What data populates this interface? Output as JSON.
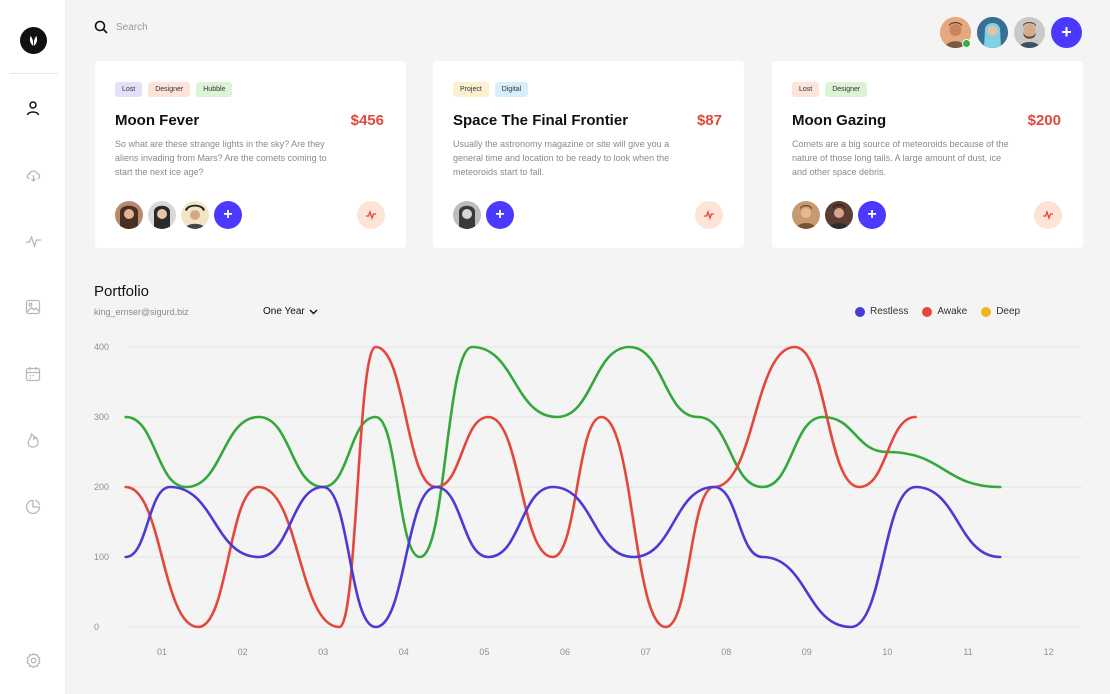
{
  "search": {
    "placeholder": "Search"
  },
  "sidebar": {
    "items": [
      {
        "name": "user",
        "icon": "user-icon"
      },
      {
        "name": "cloud",
        "icon": "cloud-download-icon"
      },
      {
        "name": "activity",
        "icon": "activity-icon"
      },
      {
        "name": "image",
        "icon": "image-icon"
      },
      {
        "name": "calendar",
        "icon": "calendar-icon"
      },
      {
        "name": "fire",
        "icon": "fire-icon"
      },
      {
        "name": "chart",
        "icon": "pie-chart-icon"
      },
      {
        "name": "settings",
        "icon": "gear-icon"
      }
    ]
  },
  "header": {
    "add_label": "+"
  },
  "cards": [
    {
      "tags": [
        {
          "label": "Lost",
          "color": "#e3e0fb"
        },
        {
          "label": "Designer",
          "color": "#fde3d9"
        },
        {
          "label": "Hubble",
          "color": "#ddf3d6"
        }
      ],
      "title": "Moon Fever",
      "price": "$456",
      "description": "So what are these strange lights in the sky? Are they aliens invading from Mars? Are the comets coming to start the next ice age?",
      "add_label": "+"
    },
    {
      "tags": [
        {
          "label": "Project",
          "color": "#fdf0cf"
        },
        {
          "label": "Digital",
          "color": "#d6f0fb"
        }
      ],
      "title": "Space The Final Frontier",
      "price": "$87",
      "description": "Usually the astronomy magazine or site will give you a general time and location to be ready to look when the meteoroids start to fall.",
      "add_label": "+"
    },
    {
      "tags": [
        {
          "label": "Lost",
          "color": "#fde3d9"
        },
        {
          "label": "Designer",
          "color": "#ddf3d6"
        }
      ],
      "title": "Moon Gazing",
      "price": "$200",
      "description": "Comets are a big source of meteoroids because of the nature of those long tails. A large amount of dust, ice and other space debris.",
      "add_label": "+"
    }
  ],
  "portfolio": {
    "title": "Portfolio",
    "email": "king_ernser@sigurd.biz",
    "period": "One Year"
  },
  "chart_data": {
    "type": "line",
    "x": [
      "01",
      "02",
      "03",
      "04",
      "05",
      "06",
      "07",
      "08",
      "09",
      "10",
      "11",
      "12"
    ],
    "ylim": [
      0,
      400
    ],
    "yticks": [
      "0",
      "100",
      "200",
      "300",
      "400"
    ],
    "grid": true,
    "legend_position": "top-right",
    "series": [
      {
        "name": "Restless",
        "color": "#4a3ad6",
        "points": [
          [
            0.55,
            100
          ],
          [
            1.1,
            200
          ],
          [
            2.2,
            100
          ],
          [
            3.0,
            200
          ],
          [
            3.65,
            0
          ],
          [
            4.4,
            200
          ],
          [
            5.05,
            100
          ],
          [
            5.85,
            200
          ],
          [
            6.85,
            100
          ],
          [
            7.85,
            200
          ],
          [
            8.45,
            100
          ],
          [
            9.55,
            0
          ],
          [
            10.35,
            200
          ],
          [
            11.4,
            100
          ]
        ]
      },
      {
        "name": "Awake",
        "color": "#e4473b",
        "points": [
          [
            0.55,
            200
          ],
          [
            1.45,
            0
          ],
          [
            2.2,
            200
          ],
          [
            3.2,
            0
          ],
          [
            3.65,
            400
          ],
          [
            4.4,
            200
          ],
          [
            5.05,
            300
          ],
          [
            5.85,
            100
          ],
          [
            6.45,
            300
          ],
          [
            7.25,
            0
          ],
          [
            7.85,
            200
          ],
          [
            8.85,
            400
          ],
          [
            9.65,
            200
          ],
          [
            10.35,
            300
          ]
        ]
      },
      {
        "name": "Deep",
        "color": "#f0b41c",
        "points": []
      },
      {
        "name": "",
        "color": "#35a83c",
        "points": [
          [
            0.55,
            300
          ],
          [
            1.3,
            200
          ],
          [
            2.2,
            300
          ],
          [
            3.0,
            200
          ],
          [
            3.65,
            300
          ],
          [
            4.2,
            100
          ],
          [
            4.85,
            400
          ],
          [
            5.9,
            300
          ],
          [
            6.8,
            400
          ],
          [
            7.65,
            300
          ],
          [
            8.45,
            200
          ],
          [
            9.2,
            300
          ],
          [
            10.0,
            250
          ],
          [
            11.4,
            200
          ]
        ]
      }
    ]
  }
}
